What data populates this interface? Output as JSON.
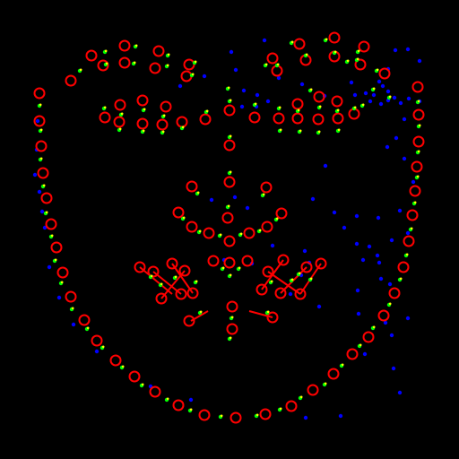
{
  "colors": {
    "background": "#000000",
    "landmark_ring": "#ff0000",
    "connector_line": "#ff0000",
    "point_tip": "#ffff00",
    "point_body": "#00ff00",
    "scatter_dot": "#0000ff"
  },
  "elements": {
    "landmark_marker": "red-ring",
    "paired_point": "yellow-green-dot",
    "background_point": "blue-dot"
  }
}
